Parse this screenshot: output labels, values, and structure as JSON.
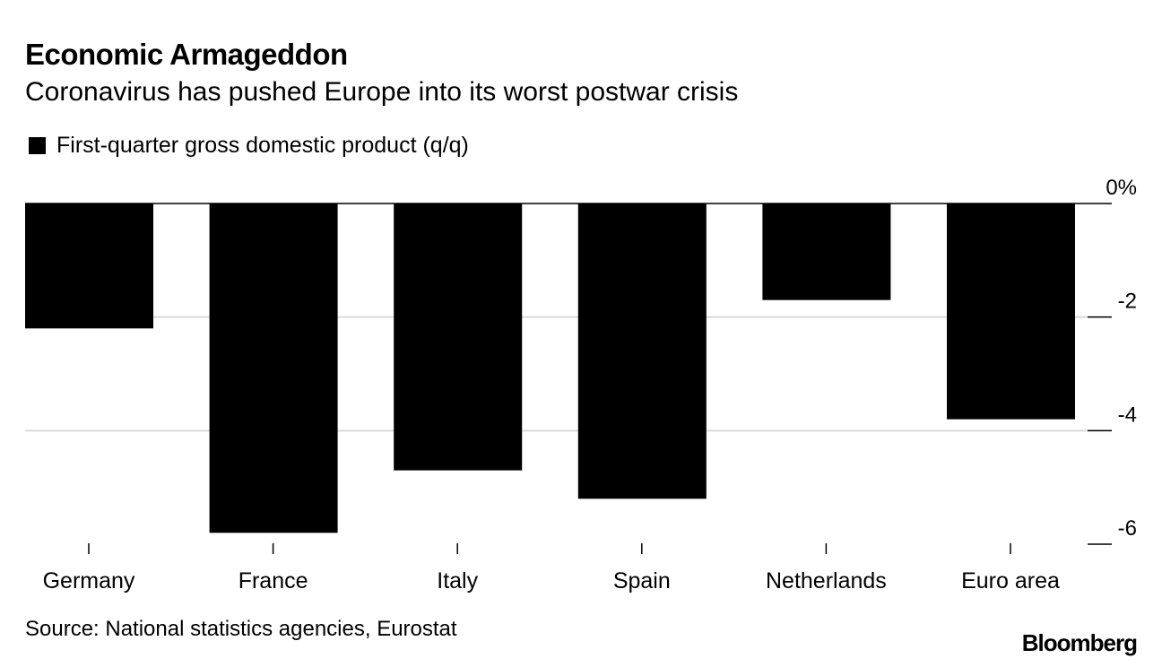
{
  "title": "Economic Armageddon",
  "subtitle": "Coronavirus has pushed Europe into its worst postwar crisis",
  "source": "Source: National statistics agencies, Eurostat",
  "logo": "Bloomberg",
  "chart_data": {
    "type": "bar",
    "title": "Economic Armageddon",
    "subtitle": "Coronavirus has pushed Europe into its worst postwar crisis",
    "legend": [
      "First-quarter gross domestic product (q/q)"
    ],
    "categories": [
      "Germany",
      "France",
      "Italy",
      "Spain",
      "Netherlands",
      "Euro area"
    ],
    "series": [
      {
        "name": "First-quarter gross domestic product (q/q)",
        "values": [
          -2.2,
          -5.8,
          -4.7,
          -5.2,
          -1.7,
          -3.8
        ],
        "color": "#000000"
      }
    ],
    "ylim": [
      -6,
      0
    ],
    "yticks": [
      0,
      -2,
      -4,
      -6
    ],
    "ytick_labels": [
      "0%",
      "-2",
      "-4",
      "-6"
    ],
    "xlabel": "",
    "ylabel": "",
    "grid": true,
    "legend_position": "top-left"
  }
}
